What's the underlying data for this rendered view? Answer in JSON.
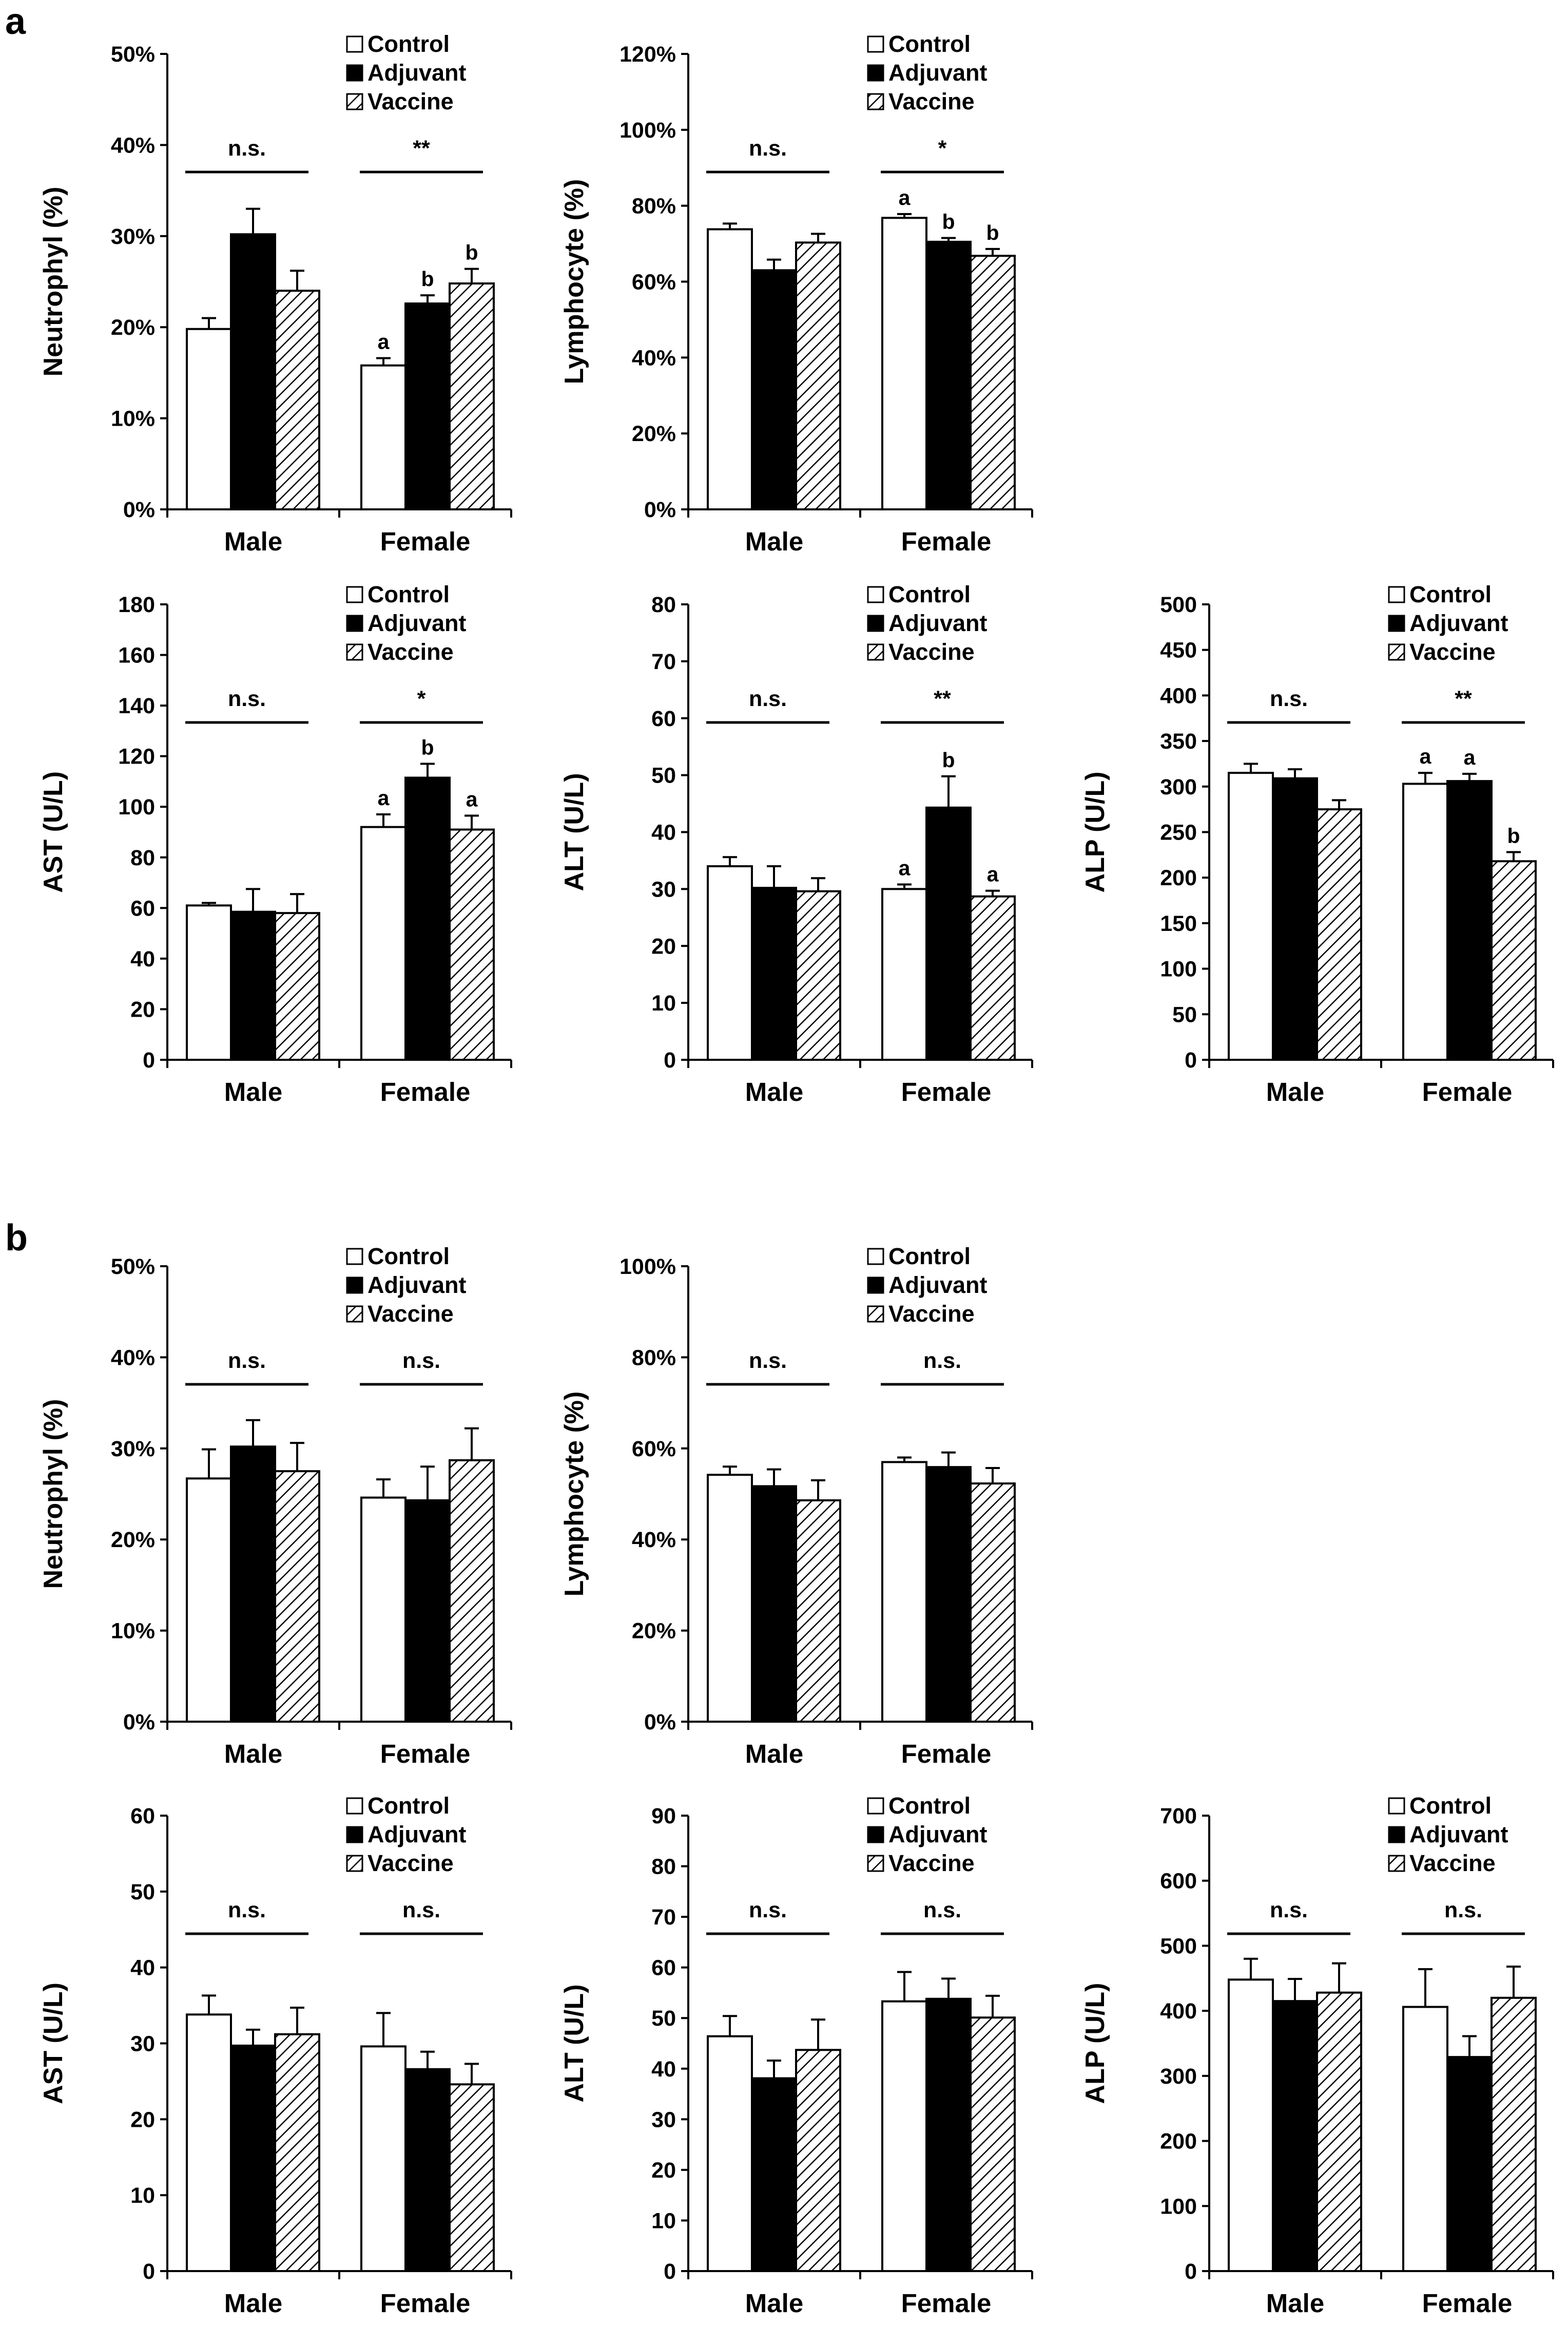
{
  "panels": [
    {
      "label": "a",
      "key": "panel_a"
    },
    {
      "label": "b",
      "key": "panel_b"
    }
  ],
  "legend": [
    "Control",
    "Adjuvant",
    "Vaccine"
  ],
  "colors": {
    "control": "#ffffff",
    "adjuvant": "#000000",
    "vaccine_hatch": "#000000",
    "axis": "#000000"
  },
  "chart_data": [
    {
      "panel": "a",
      "type": "bar",
      "ylabel": "Neutrophyl (%)",
      "categories": [
        "Male",
        "Female"
      ],
      "ylim": [
        0,
        50
      ],
      "ticks": [
        0,
        10,
        20,
        30,
        40,
        50
      ],
      "tick_labels": [
        "0%",
        "10%",
        "20%",
        "30%",
        "40%",
        "50%"
      ],
      "series": [
        {
          "name": "Control",
          "values": [
            19.8,
            15.8
          ],
          "errors": [
            1.2,
            0.8
          ],
          "letters": [
            "",
            "a"
          ]
        },
        {
          "name": "Adjuvant",
          "values": [
            30.2,
            22.6
          ],
          "errors": [
            2.8,
            0.9
          ],
          "letters": [
            "",
            "b"
          ]
        },
        {
          "name": "Vaccine",
          "values": [
            24.0,
            24.8
          ],
          "errors": [
            2.2,
            1.6
          ],
          "letters": [
            "",
            "b"
          ]
        }
      ],
      "significance": [
        "n.s.",
        "**"
      ]
    },
    {
      "panel": "a",
      "type": "bar",
      "ylabel": "Lymphocyte (%)",
      "categories": [
        "Male",
        "Female"
      ],
      "ylim": [
        0,
        120
      ],
      "ticks": [
        0,
        20,
        40,
        60,
        80,
        100,
        120
      ],
      "tick_labels": [
        "0%",
        "20%",
        "40%",
        "60%",
        "80%",
        "100%",
        "120%"
      ],
      "series": [
        {
          "name": "Control",
          "values": [
            73.8,
            76.8
          ],
          "errors": [
            1.5,
            1.0
          ],
          "letters": [
            "",
            "a"
          ]
        },
        {
          "name": "Adjuvant",
          "values": [
            63.0,
            70.5
          ],
          "errors": [
            2.8,
            1.0
          ],
          "letters": [
            "",
            "b"
          ]
        },
        {
          "name": "Vaccine",
          "values": [
            70.3,
            66.8
          ],
          "errors": [
            2.3,
            1.8
          ],
          "letters": [
            "",
            "b"
          ]
        }
      ],
      "significance": [
        "n.s.",
        "*"
      ]
    },
    {
      "panel": "a",
      "type": "bar",
      "ylabel": "AST (U/L)",
      "categories": [
        "Male",
        "Female"
      ],
      "ylim": [
        0,
        180
      ],
      "ticks": [
        0,
        20,
        40,
        60,
        80,
        100,
        120,
        140,
        160,
        180
      ],
      "tick_labels": [
        "0",
        "20",
        "40",
        "60",
        "80",
        "100",
        "120",
        "140",
        "160",
        "180"
      ],
      "series": [
        {
          "name": "Control",
          "values": [
            61.0,
            92.0
          ],
          "errors": [
            1.0,
            5.0
          ],
          "letters": [
            "",
            "a"
          ]
        },
        {
          "name": "Adjuvant",
          "values": [
            58.5,
            111.5
          ],
          "errors": [
            9.0,
            5.5
          ],
          "letters": [
            "",
            "b"
          ]
        },
        {
          "name": "Vaccine",
          "values": [
            58.0,
            91.0
          ],
          "errors": [
            7.5,
            5.5
          ],
          "letters": [
            "",
            "a"
          ]
        }
      ],
      "significance": [
        "n.s.",
        "*"
      ]
    },
    {
      "panel": "a",
      "type": "bar",
      "ylabel": "ALT (U/L)",
      "categories": [
        "Male",
        "Female"
      ],
      "ylim": [
        0,
        80
      ],
      "ticks": [
        0,
        10,
        20,
        30,
        40,
        50,
        60,
        70,
        80
      ],
      "tick_labels": [
        "0",
        "10",
        "20",
        "30",
        "40",
        "50",
        "60",
        "70",
        "80"
      ],
      "series": [
        {
          "name": "Control",
          "values": [
            34.0,
            30.0
          ],
          "errors": [
            1.6,
            0.8
          ],
          "letters": [
            "",
            "a"
          ]
        },
        {
          "name": "Adjuvant",
          "values": [
            30.2,
            44.3
          ],
          "errors": [
            3.8,
            5.5
          ],
          "letters": [
            "",
            "b"
          ]
        },
        {
          "name": "Vaccine",
          "values": [
            29.6,
            28.7
          ],
          "errors": [
            2.3,
            1.0
          ],
          "letters": [
            "",
            "a"
          ]
        }
      ],
      "significance": [
        "n.s.",
        "**"
      ]
    },
    {
      "panel": "a",
      "type": "bar",
      "ylabel": "ALP (U/L)",
      "categories": [
        "Male",
        "Female"
      ],
      "ylim": [
        0,
        500
      ],
      "ticks": [
        0,
        50,
        100,
        150,
        200,
        250,
        300,
        350,
        400,
        450,
        500
      ],
      "tick_labels": [
        "0",
        "50",
        "100",
        "150",
        "200",
        "250",
        "300",
        "350",
        "400",
        "450",
        "500"
      ],
      "series": [
        {
          "name": "Control",
          "values": [
            315,
            303
          ],
          "errors": [
            10,
            12
          ],
          "letters": [
            "",
            "a"
          ]
        },
        {
          "name": "Adjuvant",
          "values": [
            309,
            306
          ],
          "errors": [
            10,
            8
          ],
          "letters": [
            "",
            "a"
          ]
        },
        {
          "name": "Vaccine",
          "values": [
            275,
            218
          ],
          "errors": [
            10,
            10
          ],
          "letters": [
            "",
            "b"
          ]
        }
      ],
      "significance": [
        "n.s.",
        "**"
      ]
    },
    {
      "panel": "b",
      "type": "bar",
      "ylabel": "Neutrophyl (%)",
      "categories": [
        "Male",
        "Female"
      ],
      "ylim": [
        0,
        50
      ],
      "ticks": [
        0,
        10,
        20,
        30,
        40,
        50
      ],
      "tick_labels": [
        "0%",
        "10%",
        "20%",
        "30%",
        "40%",
        "50%"
      ],
      "series": [
        {
          "name": "Control",
          "values": [
            26.7,
            24.6
          ],
          "errors": [
            3.2,
            2.0
          ],
          "letters": [
            "",
            ""
          ]
        },
        {
          "name": "Adjuvant",
          "values": [
            30.2,
            24.3
          ],
          "errors": [
            2.9,
            3.7
          ],
          "letters": [
            "",
            ""
          ]
        },
        {
          "name": "Vaccine",
          "values": [
            27.5,
            28.7
          ],
          "errors": [
            3.1,
            3.5
          ],
          "letters": [
            "",
            ""
          ]
        }
      ],
      "significance": [
        "n.s.",
        "n.s."
      ]
    },
    {
      "panel": "b",
      "type": "bar",
      "ylabel": "Lymphocyte (%)",
      "categories": [
        "Male",
        "Female"
      ],
      "ylim": [
        0,
        100
      ],
      "ticks": [
        0,
        20,
        40,
        60,
        80,
        100
      ],
      "tick_labels": [
        "0%",
        "20%",
        "40%",
        "60%",
        "80%",
        "100%"
      ],
      "series": [
        {
          "name": "Control",
          "values": [
            54.2,
            57.0
          ],
          "errors": [
            1.8,
            1.0
          ],
          "letters": [
            "",
            ""
          ]
        },
        {
          "name": "Adjuvant",
          "values": [
            51.7,
            55.9
          ],
          "errors": [
            3.7,
            3.2
          ],
          "letters": [
            "",
            ""
          ]
        },
        {
          "name": "Vaccine",
          "values": [
            48.6,
            52.3
          ],
          "errors": [
            4.4,
            3.4
          ],
          "letters": [
            "",
            ""
          ]
        }
      ],
      "significance": [
        "n.s.",
        "n.s."
      ]
    },
    {
      "panel": "b",
      "type": "bar",
      "ylabel": "AST (U/L)",
      "categories": [
        "Male",
        "Female"
      ],
      "ylim": [
        0,
        60
      ],
      "ticks": [
        0,
        10,
        20,
        30,
        40,
        50,
        60
      ],
      "tick_labels": [
        "0",
        "10",
        "20",
        "30",
        "40",
        "50",
        "60"
      ],
      "series": [
        {
          "name": "Control",
          "values": [
            33.8,
            29.6
          ],
          "errors": [
            2.5,
            4.4
          ],
          "letters": [
            "",
            ""
          ]
        },
        {
          "name": "Adjuvant",
          "values": [
            29.7,
            26.6
          ],
          "errors": [
            2.1,
            2.3
          ],
          "letters": [
            "",
            ""
          ]
        },
        {
          "name": "Vaccine",
          "values": [
            31.2,
            24.6
          ],
          "errors": [
            3.5,
            2.7
          ],
          "letters": [
            "",
            ""
          ]
        }
      ],
      "significance": [
        "n.s.",
        "n.s."
      ]
    },
    {
      "panel": "b",
      "type": "bar",
      "ylabel": "ALT (U/L)",
      "categories": [
        "Male",
        "Female"
      ],
      "ylim": [
        0,
        90
      ],
      "ticks": [
        0,
        10,
        20,
        30,
        40,
        50,
        60,
        70,
        80,
        90
      ],
      "tick_labels": [
        "0",
        "10",
        "20",
        "30",
        "40",
        "50",
        "60",
        "70",
        "80",
        "90"
      ],
      "series": [
        {
          "name": "Control",
          "values": [
            46.4,
            53.3
          ],
          "errors": [
            4.0,
            5.8
          ],
          "letters": [
            "",
            ""
          ]
        },
        {
          "name": "Adjuvant",
          "values": [
            38.1,
            53.8
          ],
          "errors": [
            3.5,
            4.0
          ],
          "letters": [
            "",
            ""
          ]
        },
        {
          "name": "Vaccine",
          "values": [
            43.7,
            50.1
          ],
          "errors": [
            6.0,
            4.3
          ],
          "letters": [
            "",
            ""
          ]
        }
      ],
      "significance": [
        "n.s.",
        "n.s."
      ]
    },
    {
      "panel": "b",
      "type": "bar",
      "ylabel": "ALP (U/L)",
      "categories": [
        "Male",
        "Female"
      ],
      "ylim": [
        0,
        700
      ],
      "ticks": [
        0,
        100,
        200,
        300,
        400,
        500,
        600,
        700
      ],
      "tick_labels": [
        "0",
        "100",
        "200",
        "300",
        "400",
        "500",
        "600",
        "700"
      ],
      "series": [
        {
          "name": "Control",
          "values": [
            448,
            406
          ],
          "errors": [
            32,
            58
          ],
          "letters": [
            "",
            ""
          ]
        },
        {
          "name": "Adjuvant",
          "values": [
            415,
            329
          ],
          "errors": [
            34,
            32
          ],
          "letters": [
            "",
            ""
          ]
        },
        {
          "name": "Vaccine",
          "values": [
            428,
            420
          ],
          "errors": [
            45,
            48
          ],
          "letters": [
            "",
            ""
          ]
        }
      ],
      "significance": [
        "n.s.",
        "n.s."
      ]
    }
  ]
}
